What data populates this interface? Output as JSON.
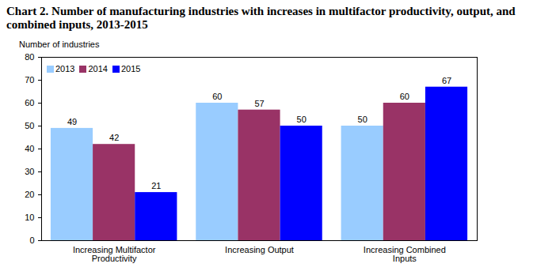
{
  "chart_data": {
    "type": "bar",
    "title": "Chart 2. Number of manufacturing industries with increases in multifactor productivity, output, and combined inputs, 2013-2015",
    "y_label": "Number of industries",
    "categories": [
      "Increasing Multifactor Productivity",
      "Increasing Output",
      "Increasing Combined Inputs"
    ],
    "series": [
      {
        "name": "2013",
        "color": "#99ccff",
        "values": [
          49,
          60,
          50
        ]
      },
      {
        "name": "2014",
        "color": "#993366",
        "values": [
          42,
          57,
          60
        ]
      },
      {
        "name": "2015",
        "color": "#0000ff",
        "values": [
          21,
          50,
          67
        ]
      }
    ],
    "ylim": [
      0,
      80
    ],
    "yticks": [
      0,
      10,
      20,
      30,
      40,
      50,
      60,
      70,
      80
    ],
    "grid": false,
    "legend": "top-left",
    "data_labels": true
  }
}
